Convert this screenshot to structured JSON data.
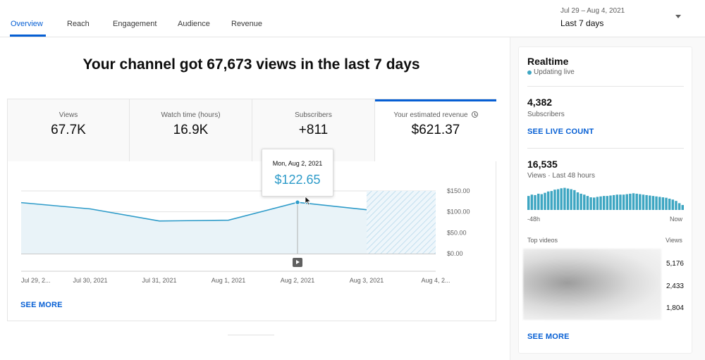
{
  "tabs": [
    {
      "label": "Overview"
    },
    {
      "label": "Reach"
    },
    {
      "label": "Engagement"
    },
    {
      "label": "Audience"
    },
    {
      "label": "Revenue"
    }
  ],
  "date_range": {
    "dates": "Jul 29 – Aug 4, 2021",
    "label": "Last 7 days"
  },
  "headline": "Your channel got 67,673 views in the last 7 days",
  "metrics": [
    {
      "label": "Views",
      "value": "67.7K"
    },
    {
      "label": "Watch time (hours)",
      "value": "16.9K"
    },
    {
      "label": "Subscribers",
      "value": "+811"
    },
    {
      "label": "Your estimated revenue",
      "value": "$621.37",
      "selected": true
    }
  ],
  "tooltip": {
    "date": "Mon, Aug 2, 2021",
    "value": "$122.65"
  },
  "see_more_main": "SEE MORE",
  "colors": {
    "accent": "#065fd4",
    "line": "#2d9bc9",
    "fill": "#e9f3f8",
    "bars": "#3ea6c2"
  },
  "chart_data": {
    "type": "line",
    "x": [
      "Jul 29, 2...",
      "Jul 30, 2021",
      "Jul 31, 2021",
      "Aug 1, 2021",
      "Aug 2, 2021",
      "Aug 3, 2021",
      "Aug 4, 2..."
    ],
    "series": [
      {
        "values": [
          122,
          107,
          78,
          80,
          122.65,
          105,
          null
        ]
      }
    ],
    "y_ticks": [
      "$150.00",
      "$100.00",
      "$50.00",
      "$0.00"
    ],
    "ylim": [
      0,
      150
    ],
    "highlight_index": 4,
    "partial_last_period": true,
    "grid": true
  },
  "realtime": {
    "title": "Realtime",
    "status": "Updating live",
    "subscribers": {
      "value": "4,382",
      "label": "Subscribers",
      "link": "SEE LIVE COUNT"
    },
    "views": {
      "value": "16,535",
      "label": "Views · Last 48 hours"
    },
    "bars": [
      62,
      68,
      66,
      72,
      70,
      76,
      82,
      84,
      90,
      92,
      96,
      98,
      95,
      92,
      88,
      78,
      72,
      68,
      62,
      56,
      55,
      58,
      60,
      62,
      62,
      64,
      66,
      68,
      68,
      68,
      70,
      72,
      74,
      72,
      70,
      68,
      66,
      64,
      62,
      60,
      58,
      56,
      54,
      50,
      46,
      40,
      30,
      22
    ],
    "bar_axis": {
      "start": "-48h",
      "end": "Now"
    },
    "top_videos": {
      "header_left": "Top videos",
      "header_right": "Views",
      "counts": [
        "5,176",
        "2,433",
        "1,804"
      ]
    },
    "see_more": "SEE MORE"
  }
}
